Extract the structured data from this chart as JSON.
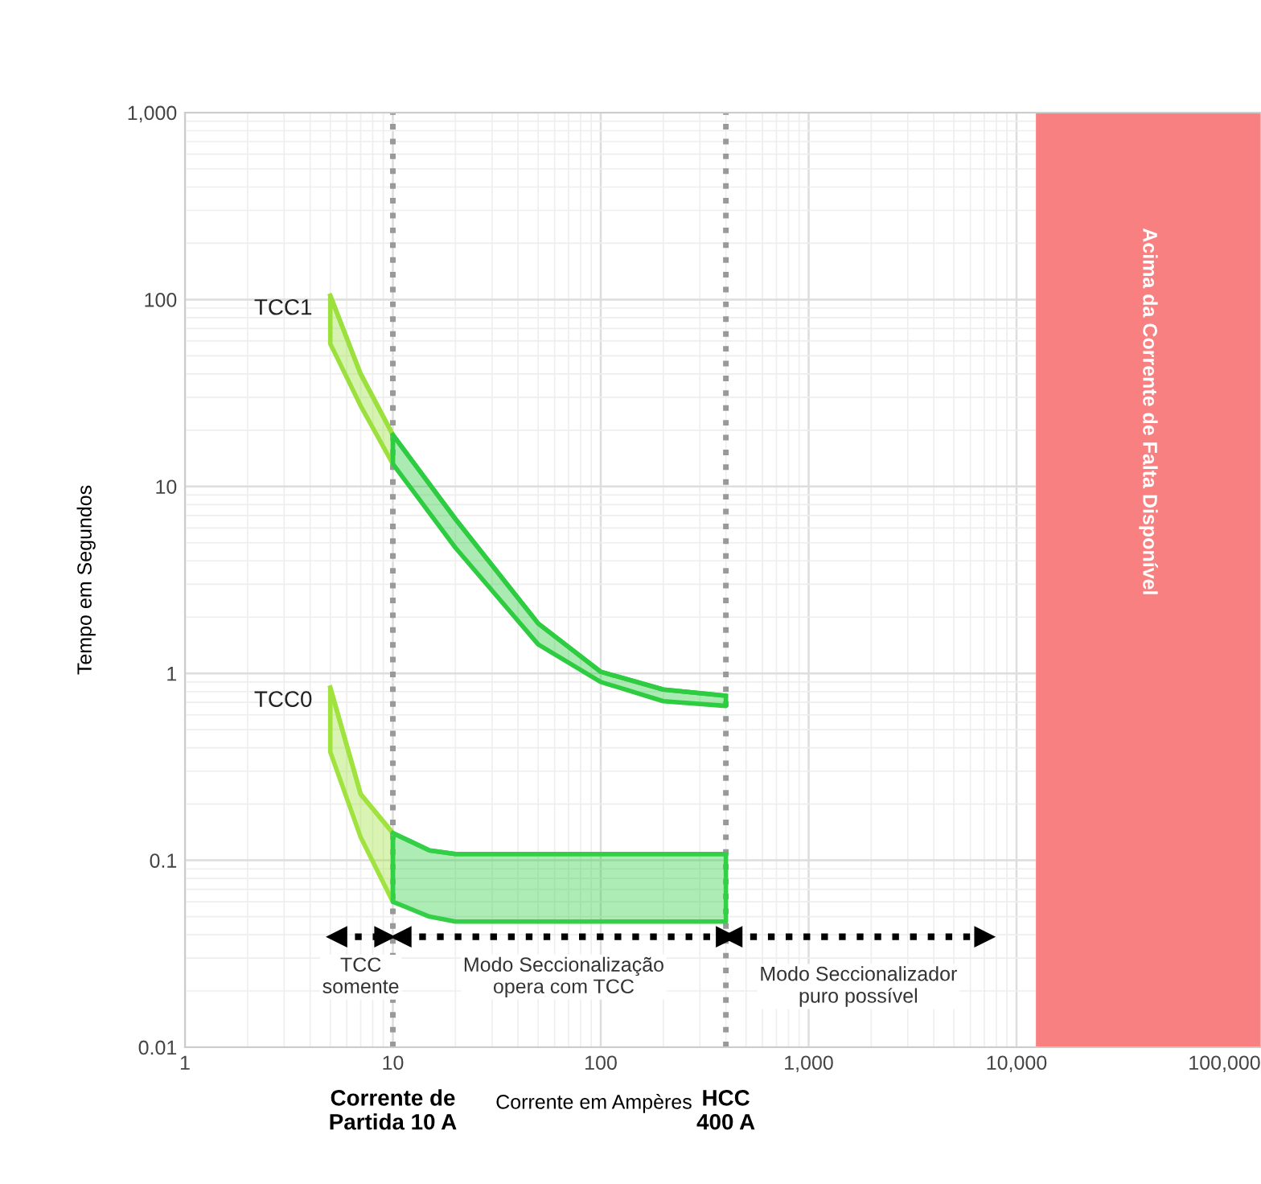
{
  "chart_data": {
    "type": "line",
    "xlabel": "Corrente em Ampères",
    "ylabel": "Tempo em Segundos",
    "log": "xy",
    "grid": true,
    "legend": false,
    "xlim": [
      1,
      150000
    ],
    "ylim": [
      0.01,
      1000
    ],
    "xticks": [
      1,
      10,
      100,
      {
        "value": 1000,
        "label": "1,000"
      },
      {
        "value": 10000,
        "label": "10,000"
      },
      {
        "value": 100000,
        "label": "100,000"
      }
    ],
    "yticks": [
      0.01,
      0.1,
      1,
      10,
      100,
      {
        "value": 1000,
        "label": "1,000"
      }
    ],
    "series": [
      {
        "name": "TCC1",
        "color": "#9be03c",
        "x": [
          5,
          7,
          10
        ],
        "values": [
          105,
          40,
          18.9
        ],
        "lower": [
          58,
          27,
          13.2
        ],
        "upper": [
          105,
          40,
          18.9
        ]
      },
      {
        "color": "#2ecc40",
        "x": [
          10,
          20,
          50,
          100,
          200,
          400
        ],
        "values": [
          18.9,
          6.7,
          1.85,
          1.02,
          0.82,
          0.76
        ],
        "lower": [
          13.2,
          4.7,
          1.43,
          0.9,
          0.71,
          0.67
        ],
        "upper": [
          18.9,
          6.7,
          1.85,
          1.02,
          0.82,
          0.76
        ]
      },
      {
        "name": "TCC0",
        "color": "#a0e23e",
        "x": [
          5,
          7,
          10
        ],
        "values": [
          0.84,
          0.226,
          0.14
        ],
        "lower": [
          0.38,
          0.133,
          0.06
        ],
        "upper": [
          0.84,
          0.226,
          0.14
        ]
      },
      {
        "color": "#33cf46",
        "x": [
          10,
          15,
          20,
          100,
          400
        ],
        "values": [
          0.14,
          0.113,
          0.108,
          0.108,
          0.108
        ],
        "lower": [
          0.06,
          0.05,
          0.047,
          0.047,
          0.047
        ],
        "upper": [
          0.14,
          0.113,
          0.108,
          0.108,
          0.108
        ]
      },
      {
        "color": "#000000",
        "line_style": "dotted",
        "marker": "triangle",
        "x": [
          5.4,
          9.1
        ],
        "values": [
          0.039,
          0.039
        ]
      },
      {
        "color": "#000000",
        "line_style": "dotted",
        "marker": "triangle",
        "x": [
          11,
          400
        ],
        "values": [
          0.039,
          0.039
        ]
      },
      {
        "color": "#000000",
        "line_style": "dotted",
        "marker": "triangle",
        "x": [
          430,
          7000
        ],
        "values": [
          0.039,
          0.039
        ]
      }
    ],
    "ref_lines": [
      {
        "axis": "x",
        "value": 10,
        "label": "Corrente de\nPartida 10 A",
        "color": "#999999",
        "line_style": "dotted"
      },
      {
        "axis": "x",
        "value": 400,
        "label": "HCC\n400 A",
        "color": "#999999",
        "line_style": "dotted"
      }
    ],
    "bands": [
      {
        "axis": "x",
        "from": 12400,
        "to": 150000,
        "label": "Acima da Corrente de Falta Disponível",
        "color": "#f98080"
      }
    ],
    "annotations": [
      "TCC\nsomente",
      "Modo Seccionalização\nopera com TCC",
      "Modo Seccionalizador\npuro possível"
    ]
  }
}
